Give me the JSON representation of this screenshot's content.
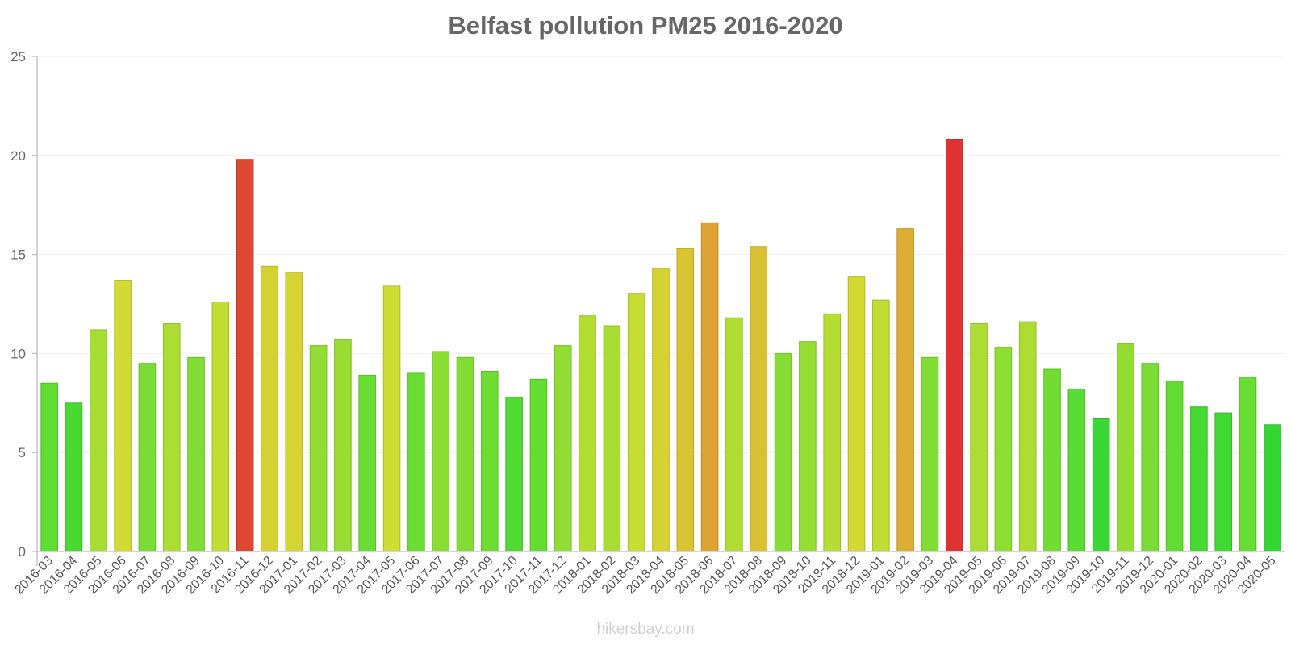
{
  "chart_data": {
    "type": "bar",
    "title": "Belfast pollution PM25 2016-2020",
    "xlabel": "",
    "ylabel": "",
    "ylim": [
      0,
      25
    ],
    "yticks": [
      0,
      5,
      10,
      15,
      20,
      25
    ],
    "grid": true,
    "legend": "none",
    "categories": [
      "2016-03",
      "2016-04",
      "2016-05",
      "2016-06",
      "2016-07",
      "2016-08",
      "2016-09",
      "2016-10",
      "2016-11",
      "2016-12",
      "2017-01",
      "2017-02",
      "2017-03",
      "2017-04",
      "2017-05",
      "2017-06",
      "2017-07",
      "2017-08",
      "2017-09",
      "2017-10",
      "2017-11",
      "2017-12",
      "2018-01",
      "2018-02",
      "2018-03",
      "2018-04",
      "2018-05",
      "2018-06",
      "2018-07",
      "2018-08",
      "2018-09",
      "2018-10",
      "2018-11",
      "2018-12",
      "2019-01",
      "2019-02",
      "2019-03",
      "2019-04",
      "2019-05",
      "2019-06",
      "2019-07",
      "2019-08",
      "2019-09",
      "2019-10",
      "2019-11",
      "2019-12",
      "2020-01",
      "2020-02",
      "2020-03",
      "2020-04",
      "2020-05"
    ],
    "values": [
      8.5,
      7.5,
      11.2,
      13.7,
      9.5,
      11.5,
      9.8,
      12.6,
      19.8,
      14.4,
      14.1,
      10.4,
      10.7,
      8.9,
      13.4,
      9.0,
      10.1,
      9.8,
      9.1,
      7.8,
      8.7,
      10.4,
      11.9,
      11.4,
      13.0,
      14.3,
      15.3,
      16.6,
      11.8,
      15.4,
      10.0,
      10.6,
      12.0,
      13.9,
      12.7,
      16.3,
      9.8,
      20.8,
      11.5,
      10.3,
      11.6,
      9.2,
      8.2,
      6.7,
      10.5,
      9.5,
      8.6,
      7.3,
      7.0,
      8.8,
      6.4
    ]
  },
  "footer": {
    "watermark": "hikersbay.com"
  },
  "colors": {
    "title": "#666666",
    "axis": "#aaaaaa",
    "gridline": "#eeeeee",
    "ticks": "#666666",
    "watermark": "#d0d0d0",
    "scale": [
      "#33d633",
      "#66dd33",
      "#a6dd33",
      "#d2dd33",
      "#ddb833",
      "#dd6633",
      "#dd3333"
    ]
  }
}
